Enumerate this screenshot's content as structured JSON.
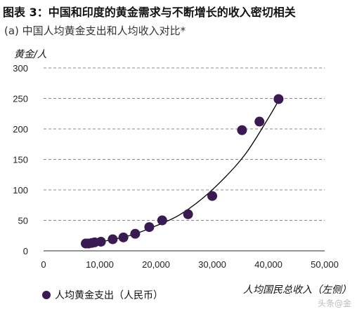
{
  "title": "图表 3：中国和印度的黄金需求与不断增长的收入密切相关",
  "subtitle": "(a) 中国人均黄金支出和人均收入对比*",
  "watermark": "头条@金",
  "colors": {
    "point": "#3a1a52",
    "grid": "#888888",
    "curve": "#000000"
  },
  "chart_data": {
    "type": "scatter",
    "title": "",
    "xlabel": "人均国民总收入（左侧）",
    "ylabel": "黄金/人",
    "xlim": [
      0,
      50000
    ],
    "ylim": [
      0,
      300
    ],
    "x_ticks": [
      0,
      10000,
      20000,
      30000,
      40000,
      50000
    ],
    "x_tick_labels": [
      "0",
      "10,000",
      "20,000",
      "30,000",
      "40,000",
      "50,000"
    ],
    "y_ticks": [
      0,
      50,
      100,
      150,
      200,
      250,
      300
    ],
    "y_tick_labels": [
      "0",
      "50",
      "100",
      "150",
      "200",
      "250",
      "300"
    ],
    "grid": "horizontal dashed",
    "legend_position": "bottom-left",
    "series": [
      {
        "name": "人均黄金支出（人民币）",
        "x": [
          7500,
          8000,
          8600,
          9100,
          10200,
          12300,
          14200,
          16300,
          18800,
          21100,
          25700,
          30000,
          35300,
          38400,
          41800
        ],
        "y": [
          12,
          12,
          13,
          14,
          15,
          19,
          22,
          28,
          39,
          50,
          60,
          90,
          198,
          212,
          249
        ]
      }
    ],
    "trendline": {
      "type": "curve",
      "x": [
        8000,
        12000,
        16000,
        20000,
        24000,
        28000,
        32000,
        36000,
        40000,
        42000
      ],
      "y": [
        12,
        18,
        27,
        41,
        58,
        84,
        118,
        160,
        218,
        250
      ]
    }
  }
}
